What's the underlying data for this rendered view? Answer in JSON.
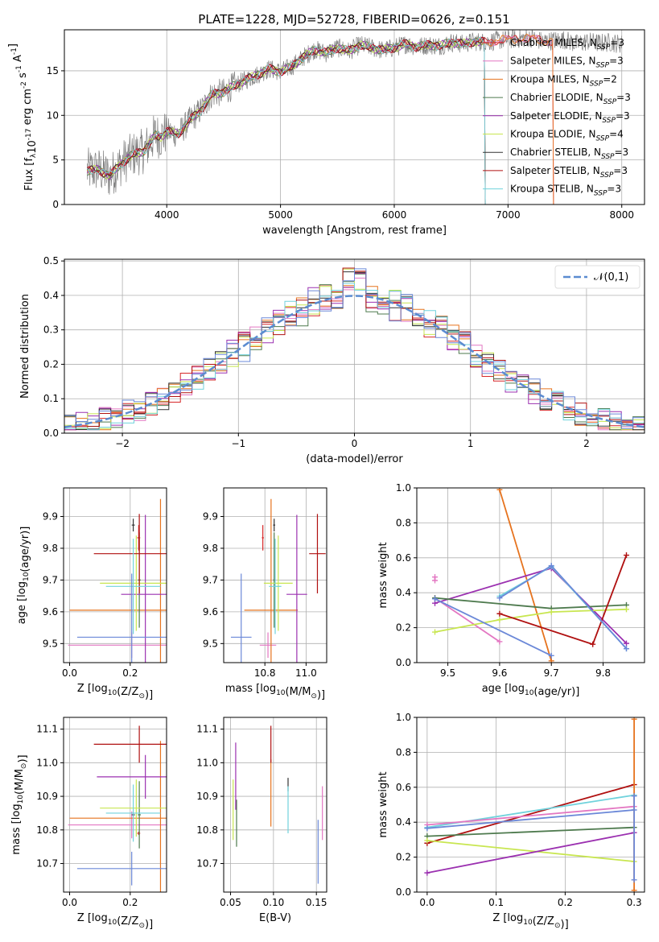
{
  "figure": {
    "title": "PLATE=1228, MJD=52728, FIBERID=0626, z=0.151",
    "models": [
      {
        "name": "Chabrier MILES, N$_{SSP}$=3",
        "label": "Chabrier MILES, N",
        "n": "3",
        "color": "#d62728"
      },
      {
        "name": "Salpeter MILES, N$_{SSP}$=3",
        "label": "Salpeter MILES, N",
        "n": "3",
        "color": "#e377c2"
      },
      {
        "name": "Kroupa MILES, N$_{SSP}$=2",
        "label": "Kroupa MILES, N",
        "n": "2",
        "color": "#e6731e"
      },
      {
        "name": "Chabrier ELODIE, N$_{SSP}$=3",
        "label": "Chabrier ELODIE, N",
        "n": "3",
        "color": "#4e7a4e"
      },
      {
        "name": "Salpeter ELODIE, N$_{SSP}$=3",
        "label": "Salpeter ELODIE, N",
        "n": "3",
        "color": "#9b30b0"
      },
      {
        "name": "Kroupa ELODIE, N$_{SSP}$=4",
        "label": "Kroupa ELODIE, N",
        "n": "4",
        "color": "#c8e650"
      },
      {
        "name": "Chabrier STELIB, N$_{SSP}$=3",
        "label": "Chabrier STELIB, N",
        "n": "3",
        "color": "#333333"
      },
      {
        "name": "Salpeter STELIB, N$_{SSP}$=3",
        "label": "Salpeter STELIB, N",
        "n": "3",
        "color": "#b01010"
      },
      {
        "name": "Kroupa STELIB, N$_{SSP}$=3",
        "label": "Kroupa STELIB, N",
        "n": "3",
        "color": "#70d2dc"
      }
    ],
    "extra_colors": {
      "blue": "#6b88d8",
      "data": "#808080"
    }
  },
  "chart_data": [
    {
      "id": "spectrum",
      "type": "line",
      "xlabel": "wavelength [Angstrom, rest frame]",
      "ylabel": "Flux [f$_\\lambda$10$^{-17}$ erg cm$^{-2}$ s$^{-1}$ A$^{-1}$]",
      "xlim": [
        3100,
        8200
      ],
      "ylim": [
        0,
        19.6
      ],
      "xticks": [
        4000,
        5000,
        6000,
        7000,
        8000
      ],
      "yticks": [
        0,
        5,
        10,
        15
      ],
      "continuum": [
        [
          3300,
          3.8
        ],
        [
          3400,
          3.9
        ],
        [
          3500,
          3.2
        ],
        [
          3600,
          4.6
        ],
        [
          3700,
          5.6
        ],
        [
          3800,
          6.0
        ],
        [
          3900,
          7.8
        ],
        [
          3950,
          7.6
        ],
        [
          4000,
          8.2
        ],
        [
          4100,
          7.9
        ],
        [
          4200,
          9.4
        ],
        [
          4300,
          10.6
        ],
        [
          4400,
          12.4
        ],
        [
          4500,
          12.6
        ],
        [
          4600,
          13.4
        ],
        [
          4700,
          14.0
        ],
        [
          4800,
          14.6
        ],
        [
          4900,
          15.2
        ],
        [
          5000,
          14.9
        ],
        [
          5100,
          15.5
        ],
        [
          5200,
          16.5
        ],
        [
          5300,
          17.4
        ],
        [
          5400,
          17.0
        ],
        [
          5500,
          17.6
        ],
        [
          5600,
          17.2
        ],
        [
          5700,
          17.9
        ],
        [
          5800,
          17.6
        ],
        [
          5900,
          17.3
        ],
        [
          6000,
          17.6
        ],
        [
          6100,
          18.0
        ],
        [
          6200,
          17.7
        ],
        [
          6300,
          17.9
        ],
        [
          6400,
          17.8
        ],
        [
          6500,
          18.2
        ],
        [
          6600,
          18.0
        ],
        [
          6700,
          18.3
        ],
        [
          6800,
          18.2
        ],
        [
          6900,
          18.4
        ],
        [
          7000,
          18.5
        ],
        [
          7100,
          18.6
        ],
        [
          7200,
          18.7
        ],
        [
          7300,
          18.3
        ],
        [
          7400,
          18.4
        ],
        [
          7500,
          18.5
        ],
        [
          7600,
          18.0
        ],
        [
          7700,
          18.3
        ],
        [
          7800,
          18.1
        ],
        [
          7900,
          18.2
        ],
        [
          8000,
          18.0
        ]
      ],
      "data_range": [
        3300,
        8000
      ],
      "model_ranges": [
        [
          3300,
          7400
        ],
        [
          3300,
          7400
        ],
        [
          3300,
          7400
        ],
        [
          3300,
          6800
        ],
        [
          3300,
          6800
        ],
        [
          3300,
          6800
        ],
        [
          3300,
          6800
        ],
        [
          3300,
          6800
        ],
        [
          3300,
          6800
        ]
      ]
    },
    {
      "id": "residual-histogram",
      "type": "line",
      "xlabel": "(data-model)/error",
      "ylabel": "Normed distribution",
      "xlim": [
        -2.5,
        2.5
      ],
      "ylim": [
        0,
        0.505
      ],
      "xticks": [
        -2,
        -1,
        0,
        1,
        2
      ],
      "yticks": [
        0.0,
        0.1,
        0.2,
        0.3,
        0.4,
        0.5
      ],
      "legend": "$\\mathcal{N}(0,1)$",
      "legend_position": "top-right",
      "bin_width": 0.1,
      "bins_start": -2.5,
      "reference_curve": "normal pdf, mean 0, std 1"
    },
    {
      "id": "z-vs-age",
      "type": "scatter",
      "xlabel": "Z [log$_{10}$(Z/Z$_\\odot$)]",
      "ylabel": "age  [log$_{10}$(age/yr)]",
      "xlim": [
        -0.02,
        0.32
      ],
      "ylim": [
        9.44,
        9.99
      ],
      "xticks": [
        0.0,
        0.2
      ],
      "yticks": [
        9.5,
        9.6,
        9.7,
        9.8,
        9.9
      ],
      "points": [
        {
          "model": 0,
          "x": 0.228,
          "y": 9.833,
          "xerr": 0.005,
          "yerr": 0.04
        },
        {
          "model": 1,
          "x": 0.205,
          "y": 9.495,
          "xerr": 0.21,
          "yerr": 0.04
        },
        {
          "model": 2,
          "x": 0.3,
          "y": 9.605,
          "xerr": 0.3,
          "yerr": 0.35
        },
        {
          "model": 3,
          "x": 0.23,
          "y": 9.7,
          "xerr": 0.005,
          "yerr": 0.15
        },
        {
          "model": 4,
          "x": 0.25,
          "y": 9.655,
          "xerr": 0.08,
          "yerr": 0.25
        },
        {
          "model": 5,
          "x": 0.22,
          "y": 9.69,
          "xerr": 0.12,
          "yerr": 0.15
        },
        {
          "model": 6,
          "x": 0.21,
          "y": 9.873,
          "xerr": 0.005,
          "yerr": 0.02
        },
        {
          "model": 7,
          "x": 0.23,
          "y": 9.783,
          "xerr": 0.15,
          "yerr": 0.125
        },
        {
          "model": 8,
          "x": 0.21,
          "y": 9.68,
          "xerr": 0.09,
          "yerr": 0.15
        },
        {
          "model": "blue",
          "x": 0.205,
          "y": 9.52,
          "xerr": 0.18,
          "yerr": 0.2
        }
      ]
    },
    {
      "id": "mass-vs-age",
      "type": "scatter",
      "xlabel": "mass [log$_{10}$(M/M$_\\odot$)]",
      "ylabel": "",
      "xlim": [
        10.6,
        11.1
      ],
      "ylim": [
        9.44,
        9.99
      ],
      "xticks": [
        10.8,
        11.0
      ],
      "yticks": [
        9.5,
        9.6,
        9.7,
        9.8,
        9.9
      ],
      "points": [
        {
          "model": 0,
          "x": 10.79,
          "y": 9.833,
          "xerr": 0.005,
          "yerr": 0.04
        },
        {
          "model": 1,
          "x": 10.815,
          "y": 9.495,
          "xerr": 0.04,
          "yerr": 0.04
        },
        {
          "model": 2,
          "x": 10.83,
          "y": 9.605,
          "xerr": 0.13,
          "yerr": 0.35
        },
        {
          "model": 3,
          "x": 10.845,
          "y": 9.7,
          "xerr": 0.005,
          "yerr": 0.15
        },
        {
          "model": 4,
          "x": 10.955,
          "y": 9.655,
          "xerr": 0.05,
          "yerr": 0.25
        },
        {
          "model": 5,
          "x": 10.865,
          "y": 9.69,
          "xerr": 0.07,
          "yerr": 0.15
        },
        {
          "model": 6,
          "x": 10.845,
          "y": 9.873,
          "xerr": 0.005,
          "yerr": 0.02
        },
        {
          "model": 7,
          "x": 11.055,
          "y": 9.783,
          "xerr": 0.04,
          "yerr": 0.125
        },
        {
          "model": 8,
          "x": 10.85,
          "y": 9.68,
          "xerr": 0.03,
          "yerr": 0.15
        },
        {
          "model": "blue",
          "x": 10.685,
          "y": 9.52,
          "xerr": 0.05,
          "yerr": 0.2
        }
      ]
    },
    {
      "id": "age-vs-weight",
      "type": "line",
      "xlabel": "age  [log$_{10}$(age/yr)]",
      "ylabel": "mass weight",
      "xlim": [
        9.44,
        9.88
      ],
      "ylim": [
        0,
        1.0
      ],
      "xticks": [
        9.5,
        9.6,
        9.7,
        9.8
      ],
      "yticks": [
        0.0,
        0.2,
        0.4,
        0.6,
        0.8,
        1.0
      ],
      "series": [
        {
          "model": 2,
          "x": [
            9.6,
            9.7
          ],
          "y": [
            0.99,
            0.01
          ]
        },
        {
          "model": 1,
          "x": [
            9.475,
            9.6
          ],
          "y": [
            0.37,
            0.12
          ]
        },
        {
          "model": 1,
          "x": [
            9.475,
            9.475
          ],
          "y": [
            0.47,
            0.49
          ]
        },
        {
          "model": 4,
          "x": [
            9.475,
            9.7,
            9.845
          ],
          "y": [
            0.34,
            0.54,
            0.11
          ]
        },
        {
          "model": 3,
          "x": [
            9.475,
            9.7,
            9.845
          ],
          "y": [
            0.37,
            0.31,
            0.33
          ]
        },
        {
          "model": 5,
          "x": [
            9.475,
            9.6,
            9.7,
            9.845
          ],
          "y": [
            0.175,
            0.245,
            0.29,
            0.305
          ]
        },
        {
          "model": "blue",
          "x": [
            9.475,
            9.7
          ],
          "y": [
            0.365,
            0.04
          ]
        },
        {
          "model": 7,
          "x": [
            9.6,
            9.78,
            9.845
          ],
          "y": [
            0.28,
            0.105,
            0.615
          ]
        },
        {
          "model": 8,
          "x": [
            9.6,
            9.7,
            9.845
          ],
          "y": [
            0.38,
            0.55,
            0.08
          ]
        },
        {
          "model": "blue",
          "x": [
            9.6,
            9.7,
            9.845
          ],
          "y": [
            0.37,
            0.555,
            0.08
          ]
        }
      ]
    },
    {
      "id": "z-vs-mass",
      "type": "scatter",
      "xlabel": "Z [log$_{10}$(Z/Z$_\\odot$)]",
      "ylabel": "mass [log$_{10}$(M/M$_\\odot$)]",
      "xlim": [
        -0.02,
        0.32
      ],
      "ylim": [
        10.615,
        11.135
      ],
      "xticks": [
        0.0,
        0.2
      ],
      "yticks": [
        10.7,
        10.8,
        10.9,
        11.0,
        11.1
      ],
      "points": [
        {
          "model": 0,
          "x": 0.228,
          "y": 10.79,
          "xerr": 0.005,
          "yerr": 0.005
        },
        {
          "model": 1,
          "x": 0.205,
          "y": 10.815,
          "xerr": 0.21,
          "yerr": 0.04
        },
        {
          "model": 2,
          "x": 0.3,
          "y": 10.835,
          "xerr": 0.3,
          "yerr": 0.23
        },
        {
          "model": 3,
          "x": 0.23,
          "y": 10.845,
          "xerr": 0.005,
          "yerr": 0.1
        },
        {
          "model": 4,
          "x": 0.25,
          "y": 10.958,
          "xerr": 0.16,
          "yerr": 0.065
        },
        {
          "model": 5,
          "x": 0.22,
          "y": 10.865,
          "xerr": 0.12,
          "yerr": 0.085
        },
        {
          "model": 6,
          "x": 0.21,
          "y": 10.845,
          "xerr": 0.005,
          "yerr": 0.005
        },
        {
          "model": 7,
          "x": 0.23,
          "y": 11.055,
          "xerr": 0.15,
          "yerr": 0.055
        },
        {
          "model": 8,
          "x": 0.21,
          "y": 10.85,
          "xerr": 0.09,
          "yerr": 0.085
        },
        {
          "model": "blue",
          "x": 0.205,
          "y": 10.685,
          "xerr": 0.18,
          "yerr": 0.05
        }
      ]
    },
    {
      "id": "ebv-vs-mass",
      "type": "scatter",
      "xlabel": "E(B-V)",
      "ylabel": "",
      "xlim": [
        0.042,
        0.162
      ],
      "ylim": [
        10.615,
        11.135
      ],
      "xticks": [
        0.05,
        0.1,
        0.15
      ],
      "yticks": [
        10.7,
        10.8,
        10.9,
        11.0,
        11.1
      ],
      "points": [
        {
          "model": 2,
          "x": 0.097,
          "y": 10.91,
          "xerr": 0,
          "yerr": 0.1
        },
        {
          "model": 1,
          "x": 0.157,
          "y": 10.85,
          "xerr": 0,
          "yerr": 0.08
        },
        {
          "model": 3,
          "x": 0.057,
          "y": 10.82,
          "xerr": 0,
          "yerr": 0.07
        },
        {
          "model": 4,
          "x": 0.056,
          "y": 10.96,
          "xerr": 0,
          "yerr": 0.1
        },
        {
          "model": 5,
          "x": 0.053,
          "y": 10.86,
          "xerr": 0,
          "yerr": 0.09
        },
        {
          "model": 6,
          "x": 0.117,
          "y": 10.935,
          "xerr": 0,
          "yerr": 0.02
        },
        {
          "model": 7,
          "x": 0.097,
          "y": 11.055,
          "xerr": 0,
          "yerr": 0.055
        },
        {
          "model": 8,
          "x": 0.117,
          "y": 10.86,
          "xerr": 0,
          "yerr": 0.07
        },
        {
          "model": "blue",
          "x": 0.152,
          "y": 10.735,
          "xerr": 0,
          "yerr": 0.095
        }
      ]
    },
    {
      "id": "z-vs-weight",
      "type": "line",
      "xlabel": "Z [log$_{10}$(Z/Z$_\\odot$)]",
      "ylabel": "mass weight",
      "xlim": [
        -0.015,
        0.315
      ],
      "ylim": [
        0,
        1.0
      ],
      "xticks": [
        0.0,
        0.1,
        0.2,
        0.3
      ],
      "yticks": [
        0.0,
        0.2,
        0.4,
        0.6,
        0.8,
        1.0
      ],
      "series": [
        {
          "model": 7,
          "x": [
            0.0,
            0.3
          ],
          "y": [
            0.28,
            0.615
          ]
        },
        {
          "model": 8,
          "x": [
            0.0,
            0.3
          ],
          "y": [
            0.37,
            0.555
          ]
        },
        {
          "model": 1,
          "x": [
            0.0,
            0.3
          ],
          "y": [
            0.385,
            0.49
          ]
        },
        {
          "model": "blue",
          "x": [
            0.0,
            0.3
          ],
          "y": [
            0.365,
            0.47
          ]
        },
        {
          "model": 3,
          "x": [
            0.0,
            0.3
          ],
          "y": [
            0.32,
            0.37
          ]
        },
        {
          "model": 5,
          "x": [
            0.0,
            0.3
          ],
          "y": [
            0.295,
            0.175
          ]
        },
        {
          "model": 4,
          "x": [
            0.0,
            0.3
          ],
          "y": [
            0.11,
            0.34
          ]
        },
        {
          "model": 2,
          "x": [
            0.3,
            0.3
          ],
          "y": [
            0.01,
            0.99
          ]
        },
        {
          "model": "blue",
          "x": [
            0.3,
            0.3
          ],
          "y": [
            0.07,
            0.55
          ]
        }
      ]
    }
  ]
}
